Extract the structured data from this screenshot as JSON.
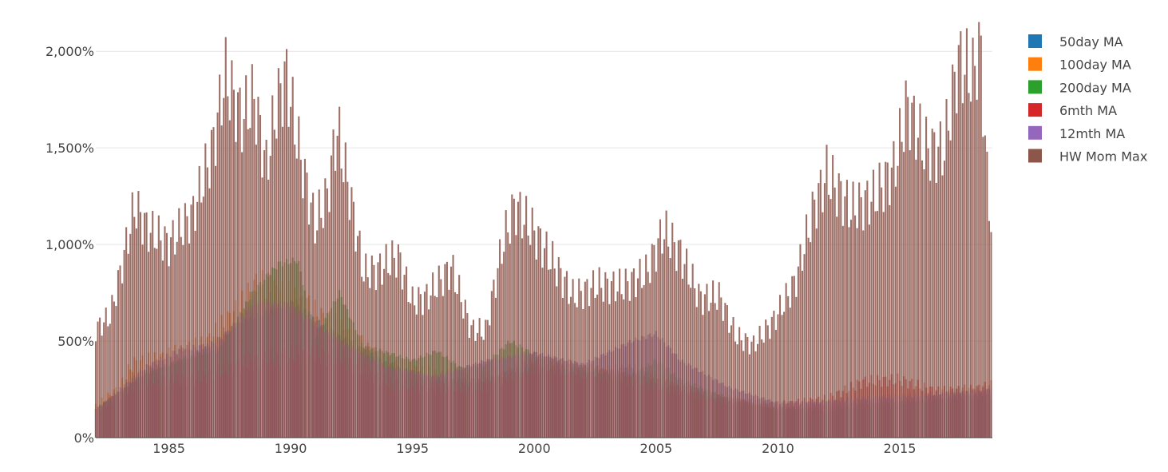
{
  "chart_data": {
    "type": "bar",
    "barmode": "overlay",
    "title": "",
    "xlabel": "",
    "ylabel": "",
    "x_range": [
      1982,
      2018.8
    ],
    "ylim": [
      0,
      2100
    ],
    "y_ticks": [
      {
        "value": 0,
        "label": "0%"
      },
      {
        "value": 500,
        "label": "500%"
      },
      {
        "value": 1000,
        "label": "1,000%"
      },
      {
        "value": 1500,
        "label": "1,500%"
      },
      {
        "value": 2000,
        "label": "2,000%"
      }
    ],
    "x_ticks": [
      {
        "value": 1985,
        "label": "1985"
      },
      {
        "value": 1990,
        "label": "1990"
      },
      {
        "value": 1995,
        "label": "1995"
      },
      {
        "value": 2000,
        "label": "2000"
      },
      {
        "value": 2005,
        "label": "2005"
      },
      {
        "value": 2010,
        "label": "2010"
      },
      {
        "value": 2015,
        "label": "2015"
      }
    ],
    "grid": "horizontal",
    "legend_position": "top-right",
    "series": [
      {
        "name": "50day MA",
        "color": "#1f77b4",
        "x": [
          1982,
          1984,
          1986,
          1988,
          1990,
          1992,
          1994,
          1996,
          1998,
          2000,
          2002,
          2004,
          2006,
          2008,
          2010,
          2012,
          2014,
          2016,
          2018,
          2018.8
        ],
        "values": [
          150,
          330,
          420,
          600,
          700,
          520,
          380,
          300,
          300,
          380,
          330,
          350,
          260,
          200,
          150,
          170,
          190,
          200,
          230,
          240
        ]
      },
      {
        "name": "100day MA",
        "color": "#ff7f0e",
        "x": [
          1982,
          1983,
          1983.5,
          1984.5,
          1985.5,
          1986.5,
          1988,
          1988.6,
          1990,
          1992,
          1994,
          1996,
          1998,
          2000,
          2002,
          2004,
          2006,
          2008,
          2010,
          2012,
          2014,
          2016,
          2018,
          2018.8
        ],
        "values": [
          160,
          260,
          380,
          400,
          440,
          480,
          680,
          790,
          720,
          560,
          380,
          320,
          320,
          370,
          330,
          350,
          260,
          200,
          160,
          180,
          200,
          220,
          240,
          250
        ]
      },
      {
        "name": "200day MA",
        "color": "#2ca02c",
        "x": [
          1982,
          1984,
          1985.5,
          1987,
          1988.5,
          1989.5,
          1990.3,
          1991,
          1992,
          1993,
          1994,
          1995,
          1996,
          1997,
          1998,
          1999,
          2000,
          2002,
          2004,
          2005,
          2006,
          2008,
          2010,
          2012,
          2014,
          2016,
          2018,
          2018.8
        ],
        "values": [
          150,
          330,
          410,
          450,
          760,
          900,
          920,
          520,
          750,
          470,
          440,
          400,
          450,
          360,
          380,
          500,
          430,
          360,
          320,
          400,
          300,
          200,
          150,
          140,
          170,
          190,
          210,
          220
        ]
      },
      {
        "name": "6mth MA",
        "color": "#d62728",
        "x": [
          1982,
          1984,
          1986,
          1988,
          1990,
          1992,
          1994,
          1996,
          1998,
          2000,
          2002,
          2004,
          2006,
          2008,
          2010,
          2012,
          2013.5,
          2015,
          2016.5,
          2018,
          2018.8
        ],
        "values": [
          140,
          300,
          300,
          380,
          430,
          420,
          280,
          260,
          260,
          380,
          350,
          300,
          250,
          190,
          170,
          200,
          290,
          300,
          240,
          250,
          270
        ]
      },
      {
        "name": "12mth MA",
        "color": "#9467bd",
        "x": [
          1982,
          1984,
          1985.5,
          1987,
          1988.5,
          1990,
          1992,
          1994,
          1996,
          1998,
          2000,
          2002,
          2004,
          2005,
          2006,
          2008,
          2010,
          2012,
          2014,
          2016,
          2018,
          2018.8
        ],
        "values": [
          140,
          360,
          460,
          480,
          700,
          680,
          500,
          360,
          320,
          400,
          440,
          380,
          500,
          540,
          400,
          260,
          180,
          190,
          210,
          220,
          240,
          250
        ]
      },
      {
        "name": "HW Mom Max",
        "color": "#8c564b",
        "x": [
          1982,
          1982.6,
          1983,
          1983.6,
          1984.1,
          1985,
          1986,
          1986.8,
          1987.3,
          1988,
          1988.5,
          1989,
          1989.4,
          1989.8,
          1990.4,
          1991,
          1991.5,
          1991.9,
          1992.4,
          1993,
          1993.6,
          1994.4,
          1995,
          1995.6,
          1996.6,
          1997.4,
          1998,
          1998.7,
          1999.2,
          2000,
          2000.8,
          2001.6,
          2002.6,
          2003.6,
          2004.6,
          2005.3,
          2006,
          2006.8,
          2007.6,
          2008.3,
          2009,
          2009.8,
          2010.7,
          2011.5,
          2012,
          2013,
          2014,
          2014.8,
          2015.3,
          2016,
          2016.8,
          2017.4,
          2018,
          2018.3,
          2018.6,
          2018.8
        ],
        "values": [
          560,
          630,
          850,
          1200,
          1080,
          1000,
          1160,
          1500,
          1870,
          1650,
          1760,
          1400,
          1700,
          1880,
          1450,
          1100,
          1250,
          1600,
          1280,
          850,
          870,
          940,
          700,
          730,
          880,
          560,
          550,
          1000,
          1200,
          1060,
          900,
          730,
          790,
          780,
          850,
          1070,
          950,
          720,
          730,
          520,
          480,
          600,
          800,
          1200,
          1360,
          1180,
          1250,
          1400,
          1720,
          1500,
          1480,
          1950,
          1870,
          2040,
          1300,
          1060
        ]
      }
    ]
  }
}
